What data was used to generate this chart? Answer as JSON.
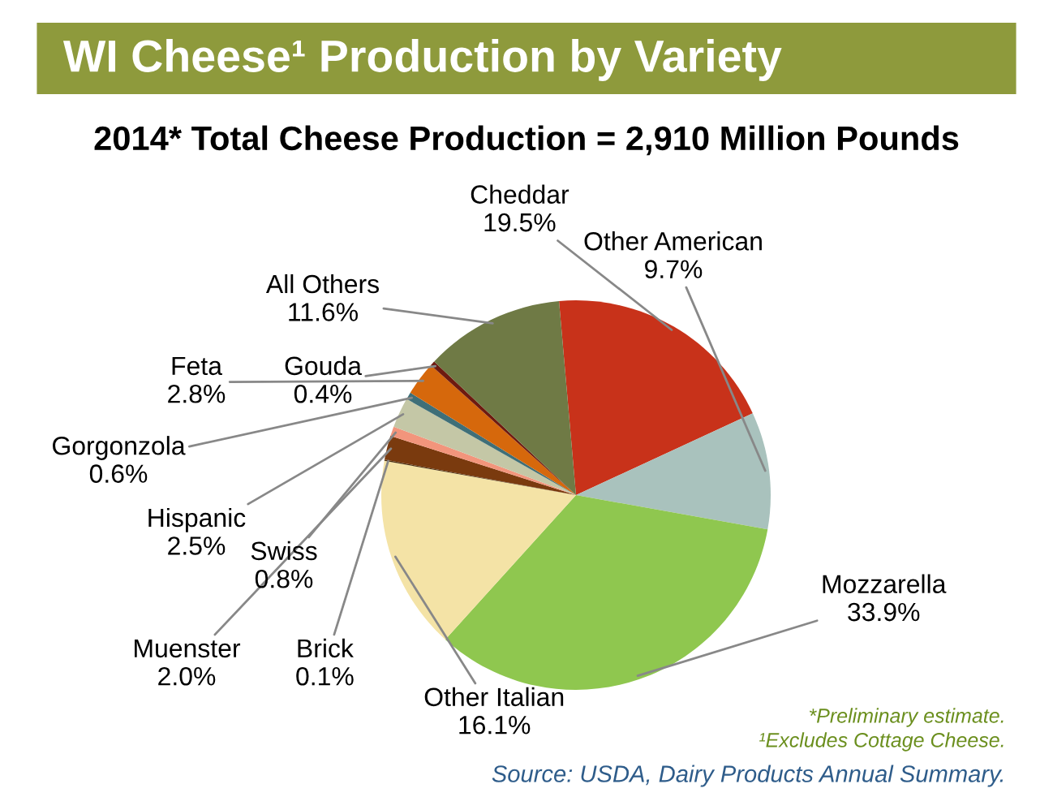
{
  "chart_data": {
    "type": "pie",
    "title": "WI Cheese¹ Production by Variety",
    "subtitle": "2014* Total Cheese Production = 2,910 Million Pounds",
    "categories": [
      "Cheddar",
      "Other American",
      "Mozzarella",
      "Other Italian",
      "Brick",
      "Muenster",
      "Swiss",
      "Hispanic",
      "Gorgonzola",
      "Feta",
      "Gouda",
      "All Others"
    ],
    "values": [
      19.5,
      9.7,
      33.9,
      16.1,
      0.1,
      2.0,
      0.8,
      2.5,
      0.6,
      2.8,
      0.4,
      11.6
    ],
    "colors": [
      "#c8321a",
      "#a9c2bd",
      "#8fc74f",
      "#f4e3a6",
      "#4a3010",
      "#7a3a0e",
      "#f2957c",
      "#c4c7a6",
      "#3f6f78",
      "#d6680c",
      "#6e1a10",
      "#6f7a45"
    ],
    "value_labels": [
      "19.5%",
      "9.7%",
      "33.9%",
      "16.1%",
      "0.1%",
      "2.0%",
      "0.8%",
      "2.5%",
      "0.6%",
      "2.8%",
      "0.4%",
      "11.6%"
    ],
    "annotations": [
      "*Preliminary estimate.",
      "¹Excludes Cottage Cheese.",
      "Source: USDA, Dairy Products Annual Summary."
    ]
  }
}
